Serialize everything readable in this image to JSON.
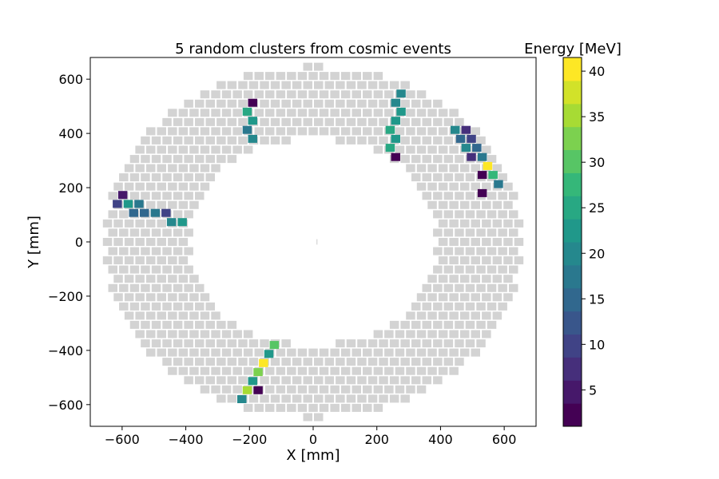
{
  "chart_data": {
    "type": "heatmap",
    "title": "5 random clusters from cosmic events",
    "xlabel": "X [mm]",
    "ylabel": "Y [mm]",
    "xlim": [
      -700,
      700
    ],
    "ylim": [
      -680,
      680
    ],
    "x_ticks": [
      -600,
      -400,
      -200,
      0,
      200,
      400,
      600
    ],
    "y_ticks": [
      -600,
      -400,
      -200,
      0,
      200,
      400,
      600
    ],
    "grid": false,
    "background_crystals": {
      "color": "#d3d3d3",
      "inner_radius_mm": 390,
      "outer_radius_mm": 660,
      "pitch_mm": 34,
      "row_offset_mm": 17,
      "vertical_squash": 0.98
    },
    "colorbar": {
      "label": "Energy [MeV]",
      "min": 1,
      "max": 41.5,
      "ticks": [
        5,
        10,
        15,
        20,
        25,
        30,
        35,
        40
      ],
      "levels": 16,
      "colormap": "viridis"
    },
    "hits": [
      {
        "x": -190,
        "y": 513,
        "e": 2
      },
      {
        "x": -207,
        "y": 480,
        "e": 25
      },
      {
        "x": -190,
        "y": 447,
        "e": 22
      },
      {
        "x": -207,
        "y": 413,
        "e": 17
      },
      {
        "x": -190,
        "y": 380,
        "e": 21
      },
      {
        "x": 276,
        "y": 547,
        "e": 20
      },
      {
        "x": 259,
        "y": 513,
        "e": 21
      },
      {
        "x": 276,
        "y": 480,
        "e": 23
      },
      {
        "x": 259,
        "y": 447,
        "e": 22
      },
      {
        "x": 242,
        "y": 413,
        "e": 25
      },
      {
        "x": 259,
        "y": 380,
        "e": 22
      },
      {
        "x": 242,
        "y": 347,
        "e": 24
      },
      {
        "x": 259,
        "y": 313,
        "e": 2
      },
      {
        "x": 446,
        "y": 413,
        "e": 19
      },
      {
        "x": 480,
        "y": 413,
        "e": 7
      },
      {
        "x": 463,
        "y": 380,
        "e": 16
      },
      {
        "x": 497,
        "y": 380,
        "e": 10
      },
      {
        "x": 480,
        "y": 347,
        "e": 19
      },
      {
        "x": 514,
        "y": 347,
        "e": 14
      },
      {
        "x": 497,
        "y": 313,
        "e": 7
      },
      {
        "x": 531,
        "y": 313,
        "e": 17
      },
      {
        "x": 548,
        "y": 280,
        "e": 40
      },
      {
        "x": 531,
        "y": 247,
        "e": 2
      },
      {
        "x": 565,
        "y": 247,
        "e": 27
      },
      {
        "x": 582,
        "y": 213,
        "e": 18
      },
      {
        "x": 531,
        "y": 180,
        "e": 2
      },
      {
        "x": -598,
        "y": 173,
        "e": 5
      },
      {
        "x": -615,
        "y": 140,
        "e": 9
      },
      {
        "x": -581,
        "y": 140,
        "e": 22
      },
      {
        "x": -547,
        "y": 140,
        "e": 17
      },
      {
        "x": -564,
        "y": 107,
        "e": 15
      },
      {
        "x": -530,
        "y": 107,
        "e": 16
      },
      {
        "x": -496,
        "y": 107,
        "e": 17
      },
      {
        "x": -462,
        "y": 107,
        "e": 11
      },
      {
        "x": -445,
        "y": 73,
        "e": 19
      },
      {
        "x": -411,
        "y": 73,
        "e": 23
      },
      {
        "x": -122,
        "y": -380,
        "e": 31
      },
      {
        "x": -139,
        "y": -413,
        "e": 23
      },
      {
        "x": -156,
        "y": -447,
        "e": 40
      },
      {
        "x": -173,
        "y": -480,
        "e": 33
      },
      {
        "x": -190,
        "y": -513,
        "e": 22
      },
      {
        "x": -207,
        "y": -547,
        "e": 35
      },
      {
        "x": -173,
        "y": -547,
        "e": 2
      },
      {
        "x": -224,
        "y": -580,
        "e": 20
      }
    ]
  }
}
